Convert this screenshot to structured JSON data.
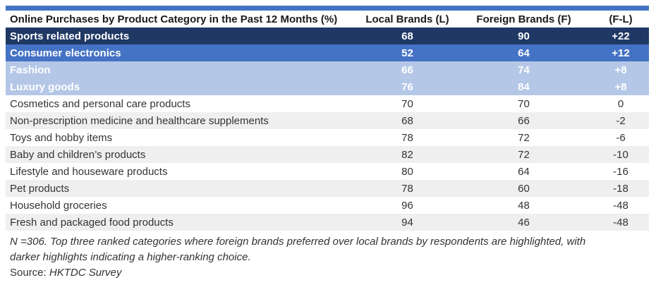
{
  "table": {
    "header": {
      "category": "Online Purchases by Product Category in the Past 12 Months (%)",
      "local": "Local Brands (L)",
      "foreign": "Foreign Brands (F)",
      "diff": "(F-L)"
    },
    "rows": [
      {
        "category": "Sports related products",
        "local": "68",
        "foreign": "90",
        "diff": "+22",
        "highlight": "dark"
      },
      {
        "category": "Consumer electronics",
        "local": "52",
        "foreign": "64",
        "diff": "+12",
        "highlight": "medium"
      },
      {
        "category": "Fashion",
        "local": "66",
        "foreign": "74",
        "diff": "+8",
        "highlight": "light"
      },
      {
        "category": "Luxury goods",
        "local": "76",
        "foreign": "84",
        "diff": "+8",
        "highlight": "light"
      },
      {
        "category": "Cosmetics and personal care products",
        "local": "70",
        "foreign": "70",
        "diff": "0",
        "highlight": "none"
      },
      {
        "category": "Non-prescription medicine and healthcare supplements",
        "local": "68",
        "foreign": "66",
        "diff": "-2",
        "highlight": "none"
      },
      {
        "category": "Toys and hobby items",
        "local": "78",
        "foreign": "72",
        "diff": "-6",
        "highlight": "none"
      },
      {
        "category": "Baby and children’s products",
        "local": "82",
        "foreign": "72",
        "diff": "-10",
        "highlight": "none"
      },
      {
        "category": "Lifestyle and houseware products",
        "local": "80",
        "foreign": "64",
        "diff": "-16",
        "highlight": "none"
      },
      {
        "category": "Pet products",
        "local": "78",
        "foreign": "60",
        "diff": "-18",
        "highlight": "none"
      },
      {
        "category": "Household groceries",
        "local": "96",
        "foreign": "48",
        "diff": "-48",
        "highlight": "none"
      },
      {
        "category": "Fresh and packaged food products",
        "local": "94",
        "foreign": "46",
        "diff": "-48",
        "highlight": "none"
      }
    ],
    "colors": {
      "dark": "#1F3864",
      "medium": "#4472C4",
      "light": "#B4C7E7",
      "zebra": "#EFEFEF",
      "top_bar": "#4472C4"
    }
  },
  "footnote": {
    "line1": "N =306. Top three ranked categories where foreign brands preferred over local brands by respondents are highlighted, with",
    "line2": "darker highlights indicating a higher-ranking choice.",
    "source_label": "Source: ",
    "source_value": "HKTDC Survey"
  },
  "chart_data": {
    "type": "table",
    "title": "Online Purchases by Product Category in the Past 12 Months (%)",
    "categories": [
      "Sports related products",
      "Consumer electronics",
      "Fashion",
      "Luxury goods",
      "Cosmetics and personal care products",
      "Non-prescription medicine and healthcare supplements",
      "Toys and hobby items",
      "Baby and children’s products",
      "Lifestyle and houseware products",
      "Pet products",
      "Household groceries",
      "Fresh and packaged food products"
    ],
    "series": [
      {
        "name": "Local Brands (L)",
        "values": [
          68,
          52,
          66,
          76,
          70,
          68,
          78,
          82,
          80,
          78,
          96,
          94
        ]
      },
      {
        "name": "Foreign Brands (F)",
        "values": [
          90,
          64,
          74,
          84,
          70,
          66,
          72,
          72,
          64,
          60,
          48,
          46
        ]
      },
      {
        "name": "(F-L)",
        "values": [
          22,
          12,
          8,
          8,
          0,
          -2,
          -6,
          -10,
          -16,
          -18,
          -48,
          -48
        ]
      }
    ],
    "highlighted_rows": [
      "Sports related products",
      "Consumer electronics",
      "Fashion",
      "Luxury goods"
    ],
    "notes": "N =306. Top three ranked categories where foreign brands preferred over local brands by respondents are highlighted, with darker highlights indicating a higher-ranking choice.",
    "source": "HKTDC Survey"
  }
}
